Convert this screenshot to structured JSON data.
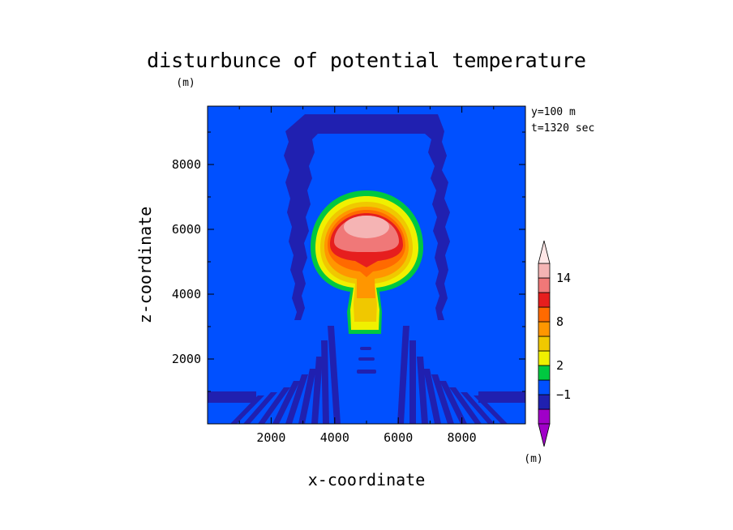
{
  "chart_data": {
    "type": "heatmap",
    "title": "disturbunce of potential temperature",
    "xlabel": "x-coordinate",
    "ylabel": "z-coordinate",
    "y_unit": "(m)",
    "annotations": [
      "y=100 m",
      "t=1320 sec"
    ],
    "xlim": [
      0,
      10000
    ],
    "ylim": [
      0,
      9800
    ],
    "xticks": [
      2000,
      4000,
      6000,
      8000
    ],
    "yticks": [
      2000,
      4000,
      6000,
      8000
    ],
    "grid": false,
    "colorbar": {
      "unit": "(m)",
      "tick_labels": [
        "14",
        "8",
        "2",
        "−1"
      ],
      "tick_values": [
        14,
        8,
        2,
        -1
      ],
      "levels": [
        -3,
        -2,
        -1,
        0,
        2,
        4,
        6,
        8,
        10,
        12,
        14,
        16
      ],
      "colors": [
        "#a000c8",
        "#2020b0",
        "#0050ff",
        "#00c840",
        "#f0f000",
        "#f0c800",
        "#ff9600",
        "#ff6a00",
        "#e61e1e",
        "#f07878",
        "#f5b4b4"
      ],
      "extend_top_color": "#ffe6e6",
      "extend_bottom_color": "#a000c8"
    },
    "background_level_color": "#0050ff",
    "features": {
      "warm_bubble": {
        "center_x": 5000,
        "center_z": 5900,
        "max_value": 15,
        "stem_bottom_z": 2800
      },
      "negative_arch": {
        "x_range": [
          2300,
          7700
        ],
        "top_z": 9700
      }
    }
  }
}
